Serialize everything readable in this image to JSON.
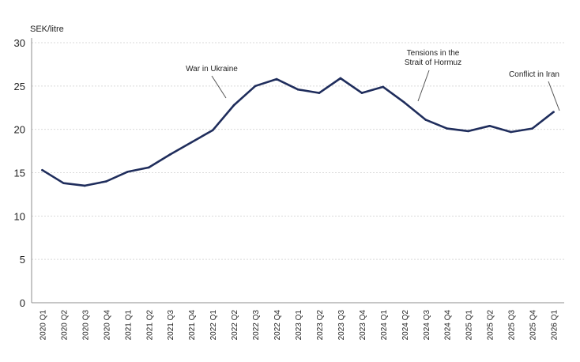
{
  "chart_data": {
    "type": "line",
    "ylabel": "SEK/litre",
    "ylim": [
      0,
      30
    ],
    "yticks": [
      0,
      5,
      10,
      15,
      20,
      25,
      30
    ],
    "grid": true,
    "categories": [
      "2020 Q1",
      "2020 Q2",
      "2020 Q3",
      "2020 Q4",
      "2021 Q1",
      "2021 Q2",
      "2021 Q3",
      "2021 Q4",
      "2022 Q1",
      "2022 Q2",
      "2022 Q3",
      "2022 Q4",
      "2023 Q1",
      "2023 Q2",
      "2023 Q3",
      "2023 Q4",
      "2024 Q1",
      "2024 Q2",
      "2024 Q3",
      "2024 Q4",
      "2025 Q1",
      "2025 Q2",
      "2025 Q3",
      "2025 Q4",
      "2026 Q1"
    ],
    "series": [
      {
        "values": [
          15.3,
          13.8,
          13.5,
          14.0,
          15.1,
          15.6,
          17.1,
          18.5,
          19.9,
          22.8,
          25.0,
          25.8,
          24.6,
          24.2,
          25.9,
          24.2,
          24.9,
          23.1,
          21.1,
          20.1,
          19.8,
          20.4,
          19.7,
          20.1,
          22.0
        ]
      }
    ],
    "annotations": [
      {
        "text": "War in Ukraine",
        "category": "2022 Q2",
        "value": 22.8
      },
      {
        "text": "Tensions in the\nStrait of Hormuz",
        "category": "2024 Q2",
        "value": 23.1
      },
      {
        "text": "Conflict in Iran",
        "category": "2026 Q1",
        "value": 22.0
      }
    ],
    "colors": {
      "line": "#1f2d5c",
      "grid": "#d9d9d9",
      "axis": "#8c8c8c",
      "leader": "#555555"
    }
  }
}
